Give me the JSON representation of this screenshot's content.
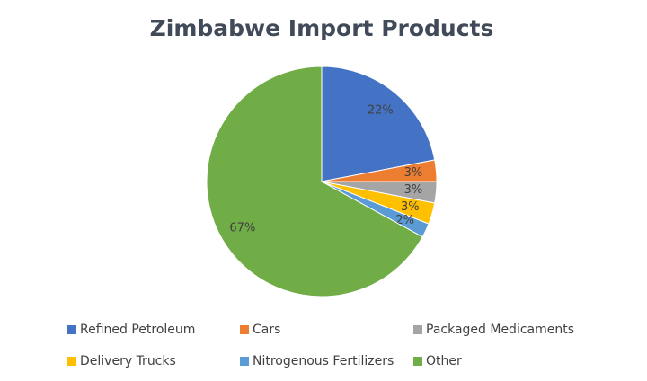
{
  "chart_data": {
    "type": "pie",
    "title": "Zimbabwe Import Products",
    "categories": [
      "Refined Petroleum",
      "Cars",
      "Packaged Medicaments",
      "Delivery Trucks",
      "Nitrogenous Fertilizers",
      "Other"
    ],
    "values": [
      22,
      3,
      3,
      3,
      2,
      67
    ],
    "value_labels": [
      "22%",
      "3%",
      "3%",
      "3%",
      "2%",
      "67%"
    ],
    "colors": [
      "#4472c4",
      "#ed7d31",
      "#a5a5a5",
      "#ffc000",
      "#5b9bd5",
      "#70ad47"
    ],
    "legend": "bottom"
  }
}
